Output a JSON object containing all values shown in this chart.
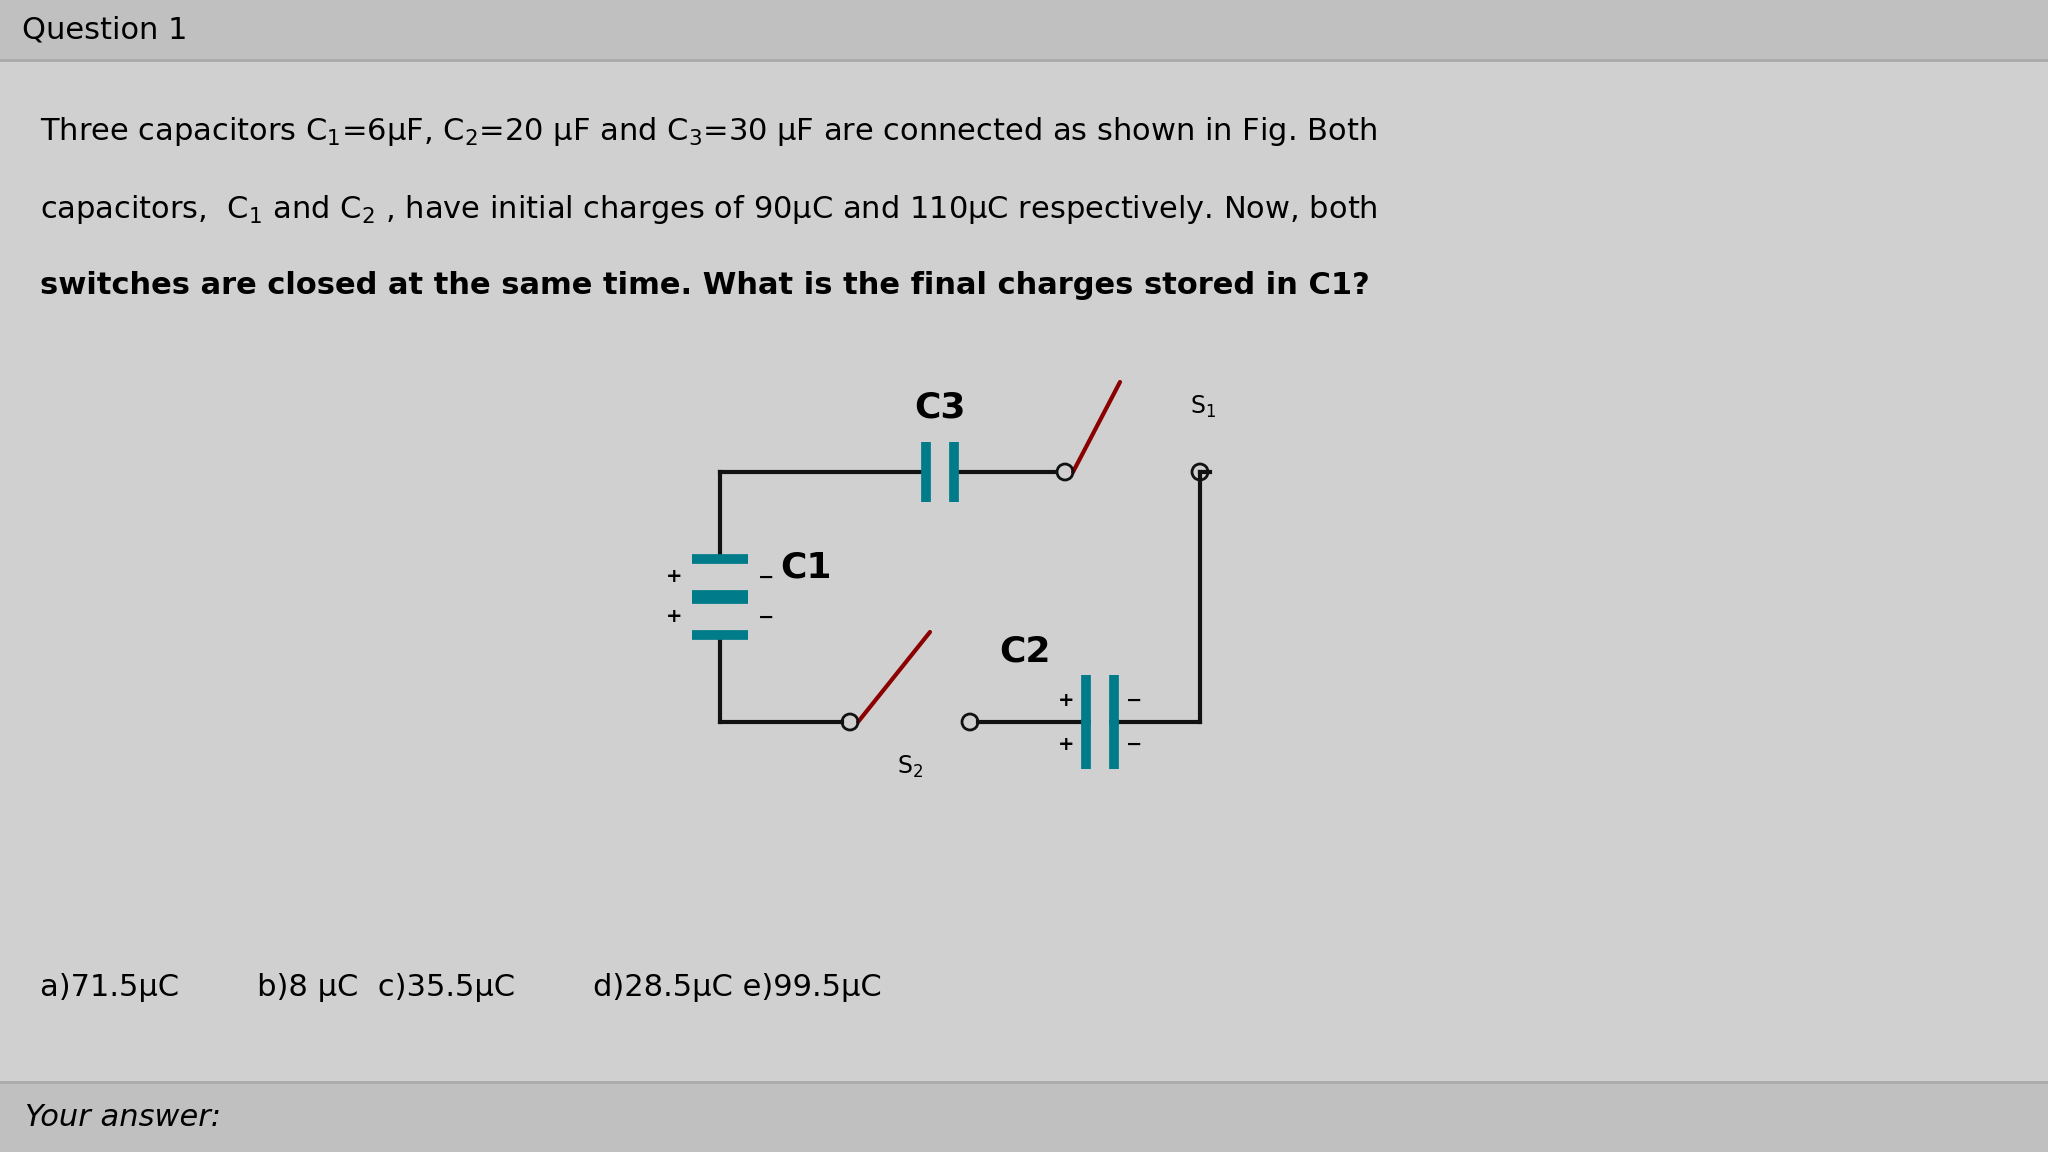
{
  "bg_color": "#d0d0d0",
  "header_bg": "#c0c0c0",
  "footer_bg": "#c0c0c0",
  "title": "Question 1",
  "title_fontsize": 22,
  "body_fontsize": 22,
  "answer_fontsize": 22,
  "answer_options": "a)71.5μC        b)8 μC  c)35.5μC        d)28.5μC e)99.5μC",
  "your_answer": "Your answer:",
  "cap_teal": "#007b8a",
  "wire_black": "#111111",
  "switch_red": "#8b0000",
  "body_lines": [
    "Three capacitors C$_1$=6μF, C$_2$=20 μF and C$_3$=30 μF are connected as shown in Fig. Both",
    "capacitors,  C$_1$ and C$_2$ , have initial charges of 90μC and 110μC respectively. Now, both",
    "switches are closed at the same time. What is the final charges stored in C1?"
  ]
}
